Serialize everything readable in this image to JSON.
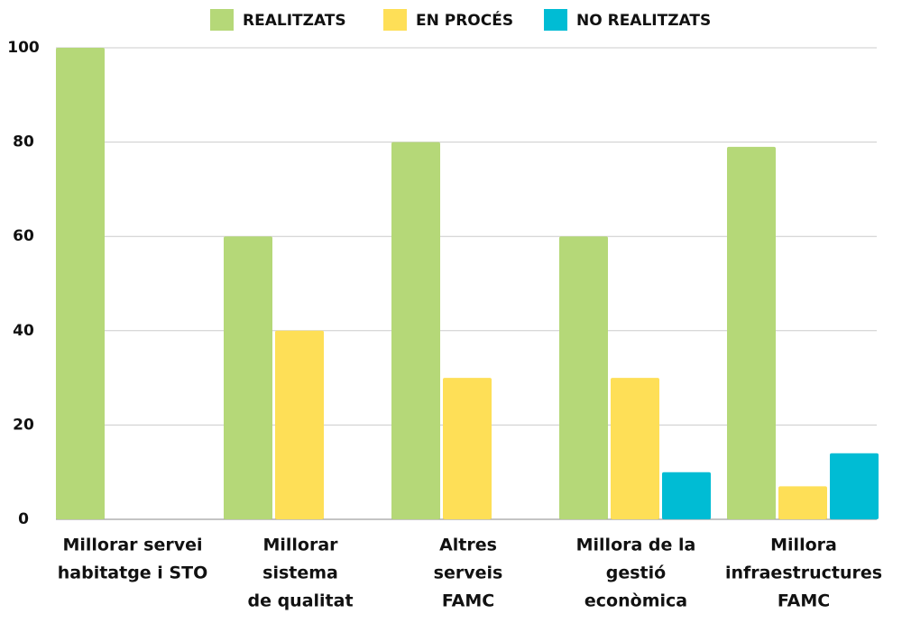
{
  "chart_data": {
    "type": "bar",
    "categories": [
      [
        "Millorar  servei",
        "habitatge i STO"
      ],
      [
        "Millorar",
        "sistema",
        "de qualitat"
      ],
      [
        "Altres",
        "serveis",
        "FAMC"
      ],
      [
        "Millora de la",
        "gestió",
        "econòmica"
      ],
      [
        "Millora",
        "infraestructures",
        "FAMC"
      ]
    ],
    "series": [
      {
        "name": "REALITZATS",
        "color": "#b5d878",
        "values": [
          100,
          60,
          80,
          60,
          79
        ]
      },
      {
        "name": "EN PROCÉS",
        "color": "#fedf57",
        "values": [
          0,
          40,
          30,
          30,
          7
        ]
      },
      {
        "name": "NO REALITZATS",
        "color": "#00bcd4",
        "values": [
          0,
          0,
          0,
          10,
          14
        ]
      }
    ],
    "ylim": [
      0,
      100
    ],
    "yticks": [
      0,
      20,
      40,
      60,
      80,
      100
    ],
    "grid": true,
    "legend": "top"
  }
}
